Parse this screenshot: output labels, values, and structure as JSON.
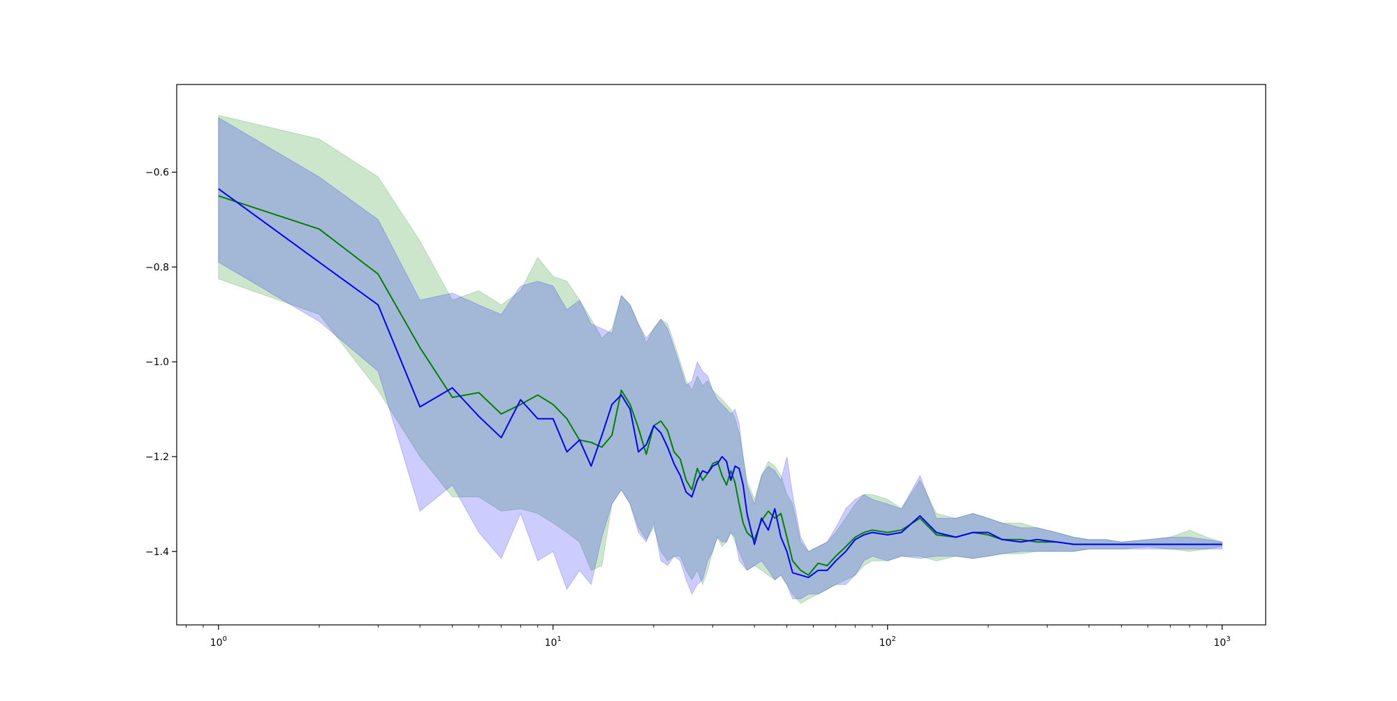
{
  "chart_data": {
    "type": "line",
    "title": "",
    "xlabel": "",
    "ylabel": "",
    "xscale": "log",
    "xlim": [
      0.75,
      1350
    ],
    "ylim": [
      -1.555,
      -0.415
    ],
    "grid": false,
    "legend": "none",
    "xticks": [
      {
        "value": 1,
        "base": "10",
        "exp": "0"
      },
      {
        "value": 10,
        "base": "10",
        "exp": "1"
      },
      {
        "value": 100,
        "base": "10",
        "exp": "2"
      },
      {
        "value": 1000,
        "base": "10",
        "exp": "3"
      }
    ],
    "yticks": [
      {
        "value": -0.6,
        "label": "−0.6"
      },
      {
        "value": -0.8,
        "label": "−0.8"
      },
      {
        "value": -1.0,
        "label": "−1.0"
      },
      {
        "value": -1.2,
        "label": "−1.2"
      },
      {
        "value": -1.4,
        "label": "−1.4"
      }
    ],
    "series": [
      {
        "color": "#008000",
        "band_color": "#008000",
        "x": [
          1,
          2,
          3,
          4,
          5,
          6,
          7,
          8,
          9,
          10,
          11,
          12,
          13,
          14,
          15,
          16,
          17,
          18,
          19,
          20,
          21,
          22,
          23,
          24,
          25,
          26,
          27,
          28,
          29,
          30,
          31,
          32,
          33,
          34,
          35,
          36,
          37,
          38,
          40,
          42,
          44,
          46,
          48,
          50,
          52,
          55,
          58,
          62,
          66,
          70,
          75,
          80,
          85,
          90,
          100,
          110,
          125,
          140,
          160,
          180,
          200,
          220,
          250,
          280,
          320,
          360,
          400,
          450,
          500,
          600,
          700,
          800,
          900,
          1000
        ],
        "y": [
          -0.65,
          -0.72,
          -0.815,
          -0.97,
          -1.075,
          -1.065,
          -1.11,
          -1.09,
          -1.07,
          -1.09,
          -1.12,
          -1.165,
          -1.17,
          -1.18,
          -1.155,
          -1.06,
          -1.09,
          -1.14,
          -1.195,
          -1.135,
          -1.125,
          -1.145,
          -1.19,
          -1.205,
          -1.25,
          -1.27,
          -1.225,
          -1.25,
          -1.235,
          -1.215,
          -1.21,
          -1.24,
          -1.26,
          -1.23,
          -1.255,
          -1.3,
          -1.34,
          -1.36,
          -1.375,
          -1.335,
          -1.315,
          -1.33,
          -1.32,
          -1.37,
          -1.42,
          -1.44,
          -1.45,
          -1.425,
          -1.43,
          -1.41,
          -1.39,
          -1.37,
          -1.36,
          -1.355,
          -1.36,
          -1.355,
          -1.33,
          -1.365,
          -1.37,
          -1.36,
          -1.365,
          -1.375,
          -1.375,
          -1.38,
          -1.38,
          -1.385,
          -1.385,
          -1.385,
          -1.385,
          -1.385,
          -1.385,
          -1.385,
          -1.385,
          -1.385
        ],
        "lower": [
          -0.825,
          -0.9,
          -1.06,
          -1.2,
          -1.285,
          -1.285,
          -1.315,
          -1.31,
          -1.32,
          -1.34,
          -1.36,
          -1.38,
          -1.44,
          -1.43,
          -1.3,
          -1.27,
          -1.3,
          -1.35,
          -1.375,
          -1.35,
          -1.4,
          -1.42,
          -1.41,
          -1.41,
          -1.44,
          -1.46,
          -1.44,
          -1.47,
          -1.44,
          -1.4,
          -1.37,
          -1.39,
          -1.38,
          -1.36,
          -1.38,
          -1.4,
          -1.42,
          -1.44,
          -1.43,
          -1.44,
          -1.45,
          -1.46,
          -1.45,
          -1.47,
          -1.49,
          -1.51,
          -1.5,
          -1.49,
          -1.48,
          -1.47,
          -1.46,
          -1.45,
          -1.43,
          -1.42,
          -1.42,
          -1.41,
          -1.41,
          -1.42,
          -1.41,
          -1.415,
          -1.41,
          -1.405,
          -1.405,
          -1.4,
          -1.4,
          -1.4,
          -1.395,
          -1.395,
          -1.395,
          -1.39,
          -1.395,
          -1.4,
          -1.395,
          -1.39
        ],
        "upper": [
          -0.48,
          -0.53,
          -0.61,
          -0.745,
          -0.87,
          -0.85,
          -0.88,
          -0.85,
          -0.78,
          -0.82,
          -0.83,
          -0.87,
          -0.91,
          -0.95,
          -0.93,
          -0.86,
          -0.88,
          -0.92,
          -0.96,
          -0.93,
          -0.91,
          -0.92,
          -0.96,
          -1.0,
          -1.04,
          -1.06,
          -1.03,
          -1.05,
          -1.04,
          -1.06,
          -1.07,
          -1.08,
          -1.09,
          -1.1,
          -1.12,
          -1.15,
          -1.2,
          -1.25,
          -1.29,
          -1.24,
          -1.21,
          -1.22,
          -1.24,
          -1.28,
          -1.3,
          -1.38,
          -1.4,
          -1.39,
          -1.38,
          -1.36,
          -1.33,
          -1.3,
          -1.28,
          -1.28,
          -1.29,
          -1.31,
          -1.25,
          -1.32,
          -1.33,
          -1.32,
          -1.33,
          -1.34,
          -1.34,
          -1.35,
          -1.36,
          -1.37,
          -1.375,
          -1.375,
          -1.38,
          -1.375,
          -1.37,
          -1.355,
          -1.37,
          -1.38
        ]
      },
      {
        "color": "#0000ff",
        "band_color": "#0000ff",
        "x": [
          1,
          2,
          3,
          4,
          5,
          6,
          7,
          8,
          9,
          10,
          11,
          12,
          13,
          14,
          15,
          16,
          17,
          18,
          19,
          20,
          21,
          22,
          23,
          24,
          25,
          26,
          27,
          28,
          29,
          30,
          31,
          32,
          33,
          34,
          35,
          36,
          37,
          38,
          40,
          42,
          44,
          46,
          48,
          50,
          52,
          55,
          58,
          62,
          66,
          70,
          75,
          80,
          85,
          90,
          100,
          110,
          125,
          140,
          160,
          180,
          200,
          220,
          250,
          280,
          320,
          360,
          400,
          450,
          500,
          600,
          700,
          800,
          900,
          1000
        ],
        "y": [
          -0.635,
          -0.79,
          -0.88,
          -1.095,
          -1.055,
          -1.115,
          -1.16,
          -1.08,
          -1.12,
          -1.12,
          -1.19,
          -1.165,
          -1.22,
          -1.155,
          -1.09,
          -1.07,
          -1.1,
          -1.19,
          -1.175,
          -1.135,
          -1.15,
          -1.18,
          -1.215,
          -1.24,
          -1.275,
          -1.285,
          -1.25,
          -1.23,
          -1.235,
          -1.22,
          -1.215,
          -1.2,
          -1.21,
          -1.25,
          -1.22,
          -1.225,
          -1.26,
          -1.32,
          -1.385,
          -1.33,
          -1.355,
          -1.31,
          -1.37,
          -1.4,
          -1.445,
          -1.45,
          -1.455,
          -1.44,
          -1.44,
          -1.42,
          -1.4,
          -1.375,
          -1.365,
          -1.36,
          -1.365,
          -1.36,
          -1.325,
          -1.36,
          -1.37,
          -1.36,
          -1.36,
          -1.375,
          -1.38,
          -1.375,
          -1.38,
          -1.385,
          -1.385,
          -1.385,
          -1.385,
          -1.385,
          -1.385,
          -1.385,
          -1.385,
          -1.385
        ],
        "lower": [
          -0.79,
          -0.915,
          -1.02,
          -1.315,
          -1.26,
          -1.36,
          -1.415,
          -1.32,
          -1.42,
          -1.4,
          -1.48,
          -1.44,
          -1.47,
          -1.37,
          -1.3,
          -1.27,
          -1.3,
          -1.36,
          -1.38,
          -1.34,
          -1.42,
          -1.43,
          -1.41,
          -1.42,
          -1.46,
          -1.49,
          -1.47,
          -1.46,
          -1.42,
          -1.4,
          -1.37,
          -1.38,
          -1.38,
          -1.36,
          -1.37,
          -1.42,
          -1.43,
          -1.44,
          -1.43,
          -1.42,
          -1.44,
          -1.46,
          -1.45,
          -1.47,
          -1.5,
          -1.5,
          -1.49,
          -1.49,
          -1.48,
          -1.47,
          -1.47,
          -1.45,
          -1.42,
          -1.41,
          -1.42,
          -1.41,
          -1.415,
          -1.41,
          -1.41,
          -1.415,
          -1.41,
          -1.405,
          -1.4,
          -1.4,
          -1.4,
          -1.4,
          -1.395,
          -1.395,
          -1.395,
          -1.395,
          -1.395,
          -1.395,
          -1.395,
          -1.395
        ],
        "upper": [
          -0.485,
          -0.61,
          -0.7,
          -0.87,
          -0.855,
          -0.88,
          -0.9,
          -0.84,
          -0.83,
          -0.84,
          -0.89,
          -0.87,
          -0.92,
          -0.93,
          -0.94,
          -0.86,
          -0.88,
          -0.92,
          -0.95,
          -0.93,
          -0.91,
          -0.93,
          -0.97,
          -1.01,
          -1.05,
          -1.04,
          -1.0,
          -1.02,
          -1.03,
          -1.06,
          -1.08,
          -1.09,
          -1.1,
          -1.11,
          -1.1,
          -1.13,
          -1.2,
          -1.26,
          -1.3,
          -1.24,
          -1.22,
          -1.23,
          -1.25,
          -1.2,
          -1.28,
          -1.37,
          -1.4,
          -1.39,
          -1.38,
          -1.35,
          -1.31,
          -1.29,
          -1.28,
          -1.29,
          -1.3,
          -1.31,
          -1.24,
          -1.33,
          -1.33,
          -1.32,
          -1.33,
          -1.34,
          -1.35,
          -1.35,
          -1.36,
          -1.37,
          -1.375,
          -1.375,
          -1.38,
          -1.375,
          -1.37,
          -1.37,
          -1.375,
          -1.38
        ]
      }
    ]
  }
}
